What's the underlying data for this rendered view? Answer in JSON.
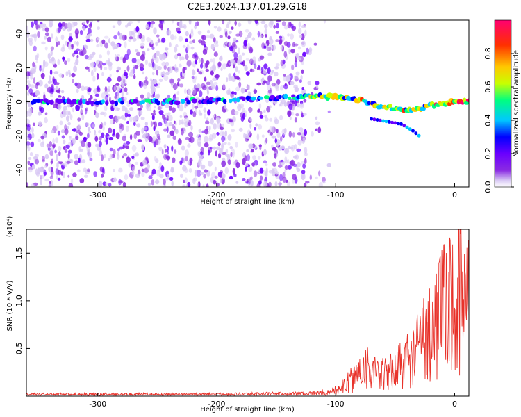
{
  "title": "C2E3.2024.137.01.29.G18",
  "chart_data": [
    {
      "type": "heatmap",
      "xlabel": "Height of straight line (km)",
      "ylabel": "Frequency (Hz)",
      "xlim": [
        -360,
        12
      ],
      "ylim": [
        -50,
        48
      ],
      "xticks": [
        -300,
        -200,
        -100,
        0
      ],
      "yticks": [
        -40,
        -20,
        0,
        20,
        40
      ],
      "colorbar": {
        "label": "Normalized spectral amplitude",
        "range": [
          0,
          1
        ],
        "ticks": [
          "0.0",
          "0.2",
          "0.4",
          "0.6",
          "0.8"
        ],
        "tick_values": [
          0.0,
          0.2,
          0.4,
          0.6,
          0.8
        ],
        "colors": [
          "#ffffff",
          "#d8c8f4",
          "#8a2be2",
          "#6a00ff",
          "#0000ff",
          "#00c8ff",
          "#00ff80",
          "#c8ff00",
          "#ffc800",
          "#ff3000",
          "#ff0070"
        ]
      },
      "ridge": {
        "description_points_km_hz": [
          [
            -355,
            0
          ],
          [
            -250,
            0
          ],
          [
            -200,
            1
          ],
          [
            -125,
            3
          ],
          [
            -100,
            3
          ],
          [
            -80,
            1
          ],
          [
            -60,
            -3
          ],
          [
            -35,
            -5
          ],
          [
            -20,
            -2
          ],
          [
            0,
            0
          ],
          [
            12,
            0
          ]
        ],
        "branch_points_km_hz": [
          [
            -70,
            -10
          ],
          [
            -45,
            -13
          ],
          [
            -35,
            -17
          ],
          [
            -28,
            -21
          ]
        ]
      }
    },
    {
      "type": "line",
      "xlabel": "Height of straight line (km)",
      "ylabel": "SNR (10 * V/V)",
      "y_scale_label": "(x10⁴)",
      "xlim": [
        -360,
        12
      ],
      "ylim": [
        0,
        1.75
      ],
      "xticks": [
        -300,
        -200,
        -100,
        0
      ],
      "yticks": [
        0.5,
        1.0,
        1.5
      ],
      "ytick_labels": [
        "0.5",
        "1.0",
        "1.5"
      ],
      "series": [
        {
          "name": "SNR",
          "color": "#e8322a",
          "envelope_km_snr": [
            [
              -360,
              0.02
            ],
            [
              -200,
              0.02
            ],
            [
              -120,
              0.03
            ],
            [
              -105,
              0.05
            ],
            [
              -95,
              0.12
            ],
            [
              -85,
              0.25
            ],
            [
              -75,
              0.45
            ],
            [
              -65,
              0.28
            ],
            [
              -55,
              0.32
            ],
            [
              -45,
              0.45
            ],
            [
              -35,
              0.55
            ],
            [
              -25,
              0.85
            ],
            [
              -15,
              1.05
            ],
            [
              -5,
              1.3
            ],
            [
              5,
              1.45
            ],
            [
              12,
              1.5
            ]
          ]
        }
      ]
    }
  ]
}
